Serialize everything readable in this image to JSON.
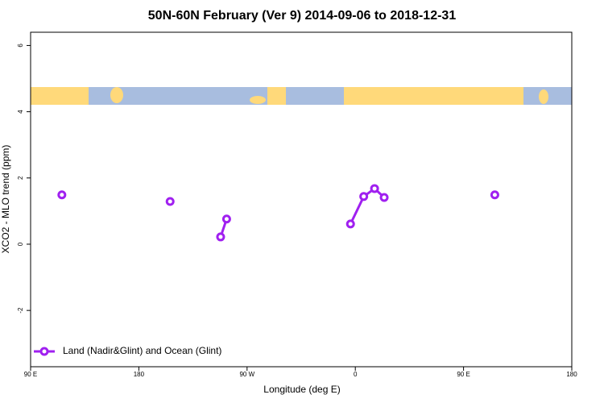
{
  "chart_data": {
    "type": "line",
    "title": "50N-60N February (Ver 9)   2014-09-06 to 2018-12-31",
    "x_label": "Longitude (deg E)",
    "y_label": "XCO2 - MLO trend (ppm)",
    "xlim": [
      90,
      540
    ],
    "xticks": [
      {
        "value": 90,
        "label": "90 E"
      },
      180,
      {
        "value": 270,
        "label": "90 W"
      },
      {
        "value": 360,
        "label": "0"
      },
      {
        "value": 450,
        "label": "90 E"
      },
      {
        "value": 540,
        "label": "180"
      }
    ],
    "ylim": [
      -3.7,
      6.4
    ],
    "yticks": [
      -2,
      0,
      2,
      4,
      6
    ],
    "legend": "bottom-left",
    "series": [
      {
        "name": "Land (Nadir&Glint) and Ocean (Glint)",
        "color": "#a020f0",
        "x": [
          116,
          null,
          206,
          null,
          248,
          253,
          null,
          356,
          367,
          376,
          384,
          null,
          476
        ],
        "values": [
          1.49,
          null,
          1.29,
          null,
          0.22,
          0.76,
          null,
          0.61,
          1.44,
          1.68,
          1.41,
          null,
          1.49
        ]
      }
    ]
  }
}
